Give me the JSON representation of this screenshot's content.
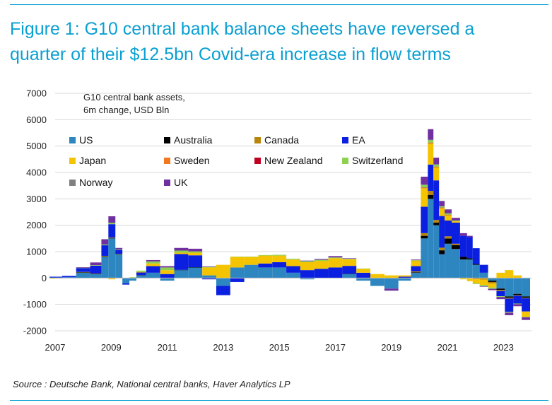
{
  "figure": {
    "title_line1": "Figure 1: G10 central bank balance sheets have reversed a",
    "title_line2": "quarter of their $12.5bn Covid-era increase in flow terms",
    "source": "Source : Deutsche Bank, National central banks, Haver Analytics LP",
    "accent_color": "#0aa0d2"
  },
  "chart_data": {
    "type": "bar",
    "stacked": true,
    "annotation": "G10 central bank assets,\n6m change, USD Bln",
    "ylim": [
      -2000,
      7000
    ],
    "yticks": [
      -2000,
      -1000,
      0,
      1000,
      2000,
      3000,
      4000,
      5000,
      6000,
      7000
    ],
    "xlim": [
      2007,
      2024
    ],
    "xticks": [
      2007,
      2009,
      2011,
      2013,
      2015,
      2017,
      2019,
      2021,
      2023
    ],
    "grid": "horizontal",
    "legend_position": "top-left",
    "legend_order": [
      "US",
      "Australia",
      "Canada",
      "EA",
      "Japan",
      "Sweden",
      "New Zealand",
      "Switzerland",
      "Norway",
      "UK"
    ],
    "x": [
      2007.0,
      2007.5,
      2008.0,
      2008.5,
      2008.8,
      2009.0,
      2009.3,
      2009.5,
      2009.8,
      2010.0,
      2010.5,
      2011.0,
      2011.5,
      2012.0,
      2012.5,
      2013.0,
      2013.5,
      2014.0,
      2014.5,
      2015.0,
      2015.5,
      2016.0,
      2016.5,
      2017.0,
      2017.5,
      2018.0,
      2018.5,
      2019.0,
      2019.5,
      2019.9,
      2020.2,
      2020.4,
      2020.6,
      2020.8,
      2021.0,
      2021.3,
      2021.6,
      2021.8,
      2022.0,
      2022.3,
      2022.6,
      2022.9,
      2023.2,
      2023.5,
      2023.8
    ],
    "series": [
      {
        "name": "US",
        "color": "#2e86c1",
        "values": [
          20,
          30,
          200,
          150,
          800,
          1500,
          900,
          -200,
          -100,
          100,
          200,
          -100,
          300,
          400,
          100,
          -300,
          400,
          500,
          400,
          400,
          200,
          -50,
          0,
          0,
          150,
          -100,
          -300,
          -400,
          -100,
          200,
          1500,
          3000,
          2000,
          900,
          1300,
          1100,
          700,
          700,
          500,
          200,
          -100,
          -400,
          -700,
          -600,
          -700
        ]
      },
      {
        "name": "Australia",
        "color": "#000000",
        "values": [
          0,
          0,
          20,
          10,
          20,
          20,
          10,
          0,
          0,
          10,
          0,
          0,
          10,
          10,
          0,
          0,
          0,
          0,
          0,
          0,
          0,
          0,
          0,
          0,
          10,
          0,
          0,
          0,
          0,
          20,
          100,
          150,
          100,
          150,
          200,
          150,
          100,
          50,
          30,
          0,
          -50,
          -50,
          -50,
          -50,
          -50
        ]
      },
      {
        "name": "Canada",
        "color": "#b8860b",
        "values": [
          0,
          0,
          10,
          10,
          20,
          20,
          10,
          0,
          0,
          0,
          0,
          0,
          0,
          0,
          0,
          0,
          0,
          0,
          0,
          0,
          0,
          0,
          0,
          0,
          0,
          0,
          0,
          0,
          0,
          30,
          100,
          150,
          100,
          100,
          80,
          50,
          0,
          -20,
          -50,
          -60,
          -60,
          -40,
          -30,
          -20,
          -20
        ]
      },
      {
        "name": "EA",
        "color": "#0a1fe0",
        "values": [
          30,
          50,
          150,
          300,
          400,
          500,
          150,
          -50,
          0,
          100,
          250,
          150,
          600,
          450,
          -50,
          -350,
          -150,
          0,
          150,
          200,
          250,
          300,
          350,
          400,
          300,
          200,
          0,
          0,
          50,
          200,
          1000,
          1000,
          1500,
          1200,
          600,
          800,
          800,
          800,
          600,
          300,
          0,
          -200,
          -500,
          -300,
          -500
        ]
      },
      {
        "name": "Japan",
        "color": "#f5c400",
        "values": [
          -20,
          0,
          0,
          0,
          0,
          -50,
          0,
          0,
          0,
          20,
          100,
          150,
          50,
          100,
          300,
          500,
          400,
          300,
          300,
          250,
          250,
          300,
          300,
          350,
          250,
          150,
          150,
          100,
          50,
          200,
          700,
          800,
          500,
          300,
          200,
          50,
          -50,
          -100,
          -150,
          -200,
          -150,
          200,
          300,
          100,
          -200
        ]
      },
      {
        "name": "Sweden",
        "color": "#f07820",
        "values": [
          0,
          0,
          0,
          0,
          0,
          0,
          0,
          0,
          0,
          0,
          0,
          0,
          0,
          0,
          0,
          0,
          0,
          0,
          0,
          0,
          0,
          0,
          0,
          0,
          0,
          0,
          0,
          0,
          0,
          10,
          20,
          20,
          10,
          10,
          10,
          0,
          0,
          0,
          0,
          0,
          0,
          0,
          0,
          0,
          0
        ]
      },
      {
        "name": "New Zealand",
        "color": "#c00020",
        "values": [
          0,
          0,
          0,
          0,
          0,
          0,
          0,
          0,
          0,
          0,
          0,
          0,
          0,
          0,
          0,
          0,
          0,
          0,
          0,
          0,
          0,
          0,
          0,
          0,
          0,
          0,
          0,
          0,
          0,
          0,
          10,
          10,
          10,
          10,
          10,
          0,
          0,
          0,
          0,
          0,
          0,
          0,
          0,
          0,
          0
        ]
      },
      {
        "name": "Switzerland",
        "color": "#8ed050",
        "values": [
          0,
          0,
          10,
          20,
          30,
          50,
          20,
          0,
          30,
          50,
          80,
          100,
          80,
          50,
          20,
          0,
          10,
          10,
          20,
          30,
          30,
          40,
          40,
          30,
          20,
          10,
          0,
          0,
          0,
          20,
          100,
          100,
          80,
          50,
          50,
          30,
          0,
          0,
          -30,
          -50,
          -50,
          -30,
          -30,
          -20,
          -20
        ]
      },
      {
        "name": "Norway",
        "color": "#808080",
        "values": [
          0,
          0,
          0,
          0,
          0,
          0,
          0,
          0,
          0,
          0,
          0,
          0,
          0,
          0,
          0,
          0,
          0,
          0,
          0,
          0,
          0,
          0,
          0,
          0,
          0,
          0,
          0,
          0,
          0,
          0,
          10,
          10,
          10,
          0,
          0,
          0,
          0,
          0,
          0,
          0,
          0,
          0,
          0,
          0,
          0
        ]
      },
      {
        "name": "UK",
        "color": "#7030a0",
        "values": [
          0,
          0,
          20,
          100,
          200,
          250,
          50,
          0,
          0,
          0,
          50,
          50,
          100,
          100,
          20,
          0,
          0,
          0,
          0,
          0,
          0,
          20,
          30,
          50,
          20,
          0,
          0,
          -80,
          0,
          20,
          300,
          400,
          250,
          200,
          150,
          100,
          100,
          50,
          0,
          -20,
          -50,
          -80,
          -100,
          -80,
          -100
        ]
      }
    ]
  }
}
